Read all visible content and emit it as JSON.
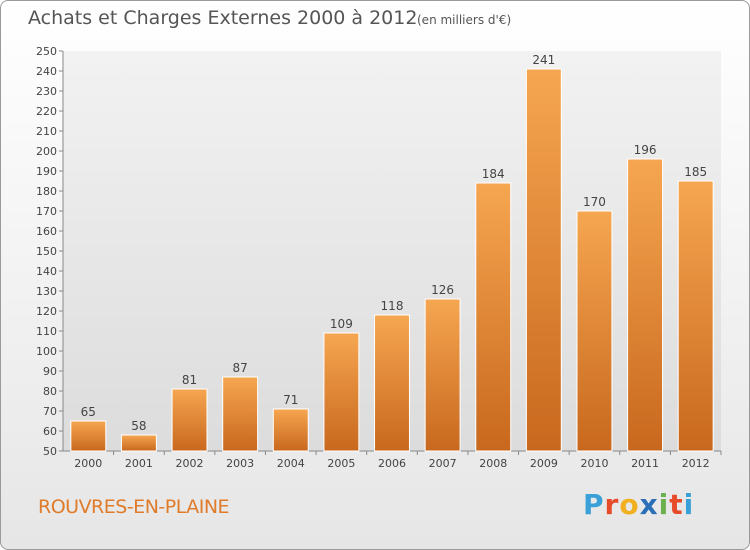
{
  "title": "Achats et Charges Externes 2000 à 2012",
  "subtitle": "(en milliers d'€)",
  "commune": "ROUVRES-EN-PLAINE",
  "logo": {
    "letters": [
      "P",
      "r",
      "o",
      "x",
      "i",
      "t",
      "i"
    ],
    "colors": [
      "#3aa0d8",
      "#e84b2a",
      "#f0b020",
      "#2a6fb8",
      "#6ab04c",
      "#e84b2a",
      "#3aa0d8"
    ]
  },
  "colors": {
    "bar_top": "#f6a650",
    "bar_bottom": "#c8681e",
    "commune": "#e07b2a"
  },
  "chart_data": {
    "type": "bar",
    "title": "Achats et Charges Externes 2000 à 2012",
    "categories": [
      "2000",
      "2001",
      "2002",
      "2003",
      "2004",
      "2005",
      "2006",
      "2007",
      "2008",
      "2009",
      "2010",
      "2011",
      "2012"
    ],
    "values": [
      65,
      58,
      81,
      87,
      71,
      109,
      118,
      126,
      184,
      241,
      170,
      196,
      185
    ],
    "ylim": [
      50,
      250
    ],
    "ytick_step": 10,
    "grid": false,
    "data_labels": true
  }
}
